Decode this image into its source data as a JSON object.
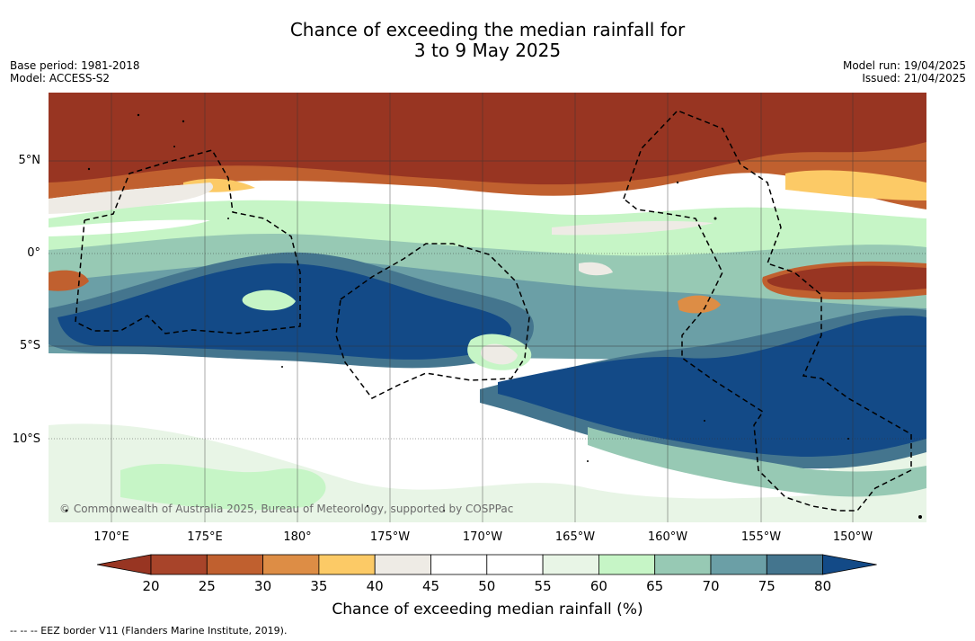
{
  "header": {
    "title_line1": "Chance of exceeding the median rainfall for",
    "title_line2": "3 to 9 May 2025",
    "base_period": "Base period: 1981-2018",
    "model": "Model: ACCESS-S2",
    "model_run": "Model run: 19/04/2025",
    "issued": "Issued: 21/04/2025"
  },
  "map": {
    "lat_labels": [
      "5°N",
      "0°",
      "5°S",
      "10°S"
    ],
    "lon_labels": [
      "170°E",
      "175°E",
      "180°",
      "175°W",
      "170°W",
      "165°W",
      "160°W",
      "155°W",
      "150°W"
    ],
    "copyright": "© Commonwealth of Australia 2025, Bureau of Meteorology, supported by COSPPac"
  },
  "colorbar": {
    "ticks": [
      "20",
      "25",
      "30",
      "35",
      "40",
      "45",
      "50",
      "55",
      "60",
      "65",
      "70",
      "75",
      "80"
    ],
    "colors": [
      "#983522",
      "#a8442a",
      "#c0602f",
      "#dd8d45",
      "#fcca66",
      "#eeebe5",
      "#ffffff",
      "#ffffff",
      "#e8f5e6",
      "#c6f5c6",
      "#97c9b4",
      "#6b9fa6",
      "#44758e",
      "#134a87"
    ],
    "label": "Chance of exceeding median rainfall (%)"
  },
  "footnote": "--  --  -- EEZ border V11 (Flanders Marine Institute, 2019)."
}
